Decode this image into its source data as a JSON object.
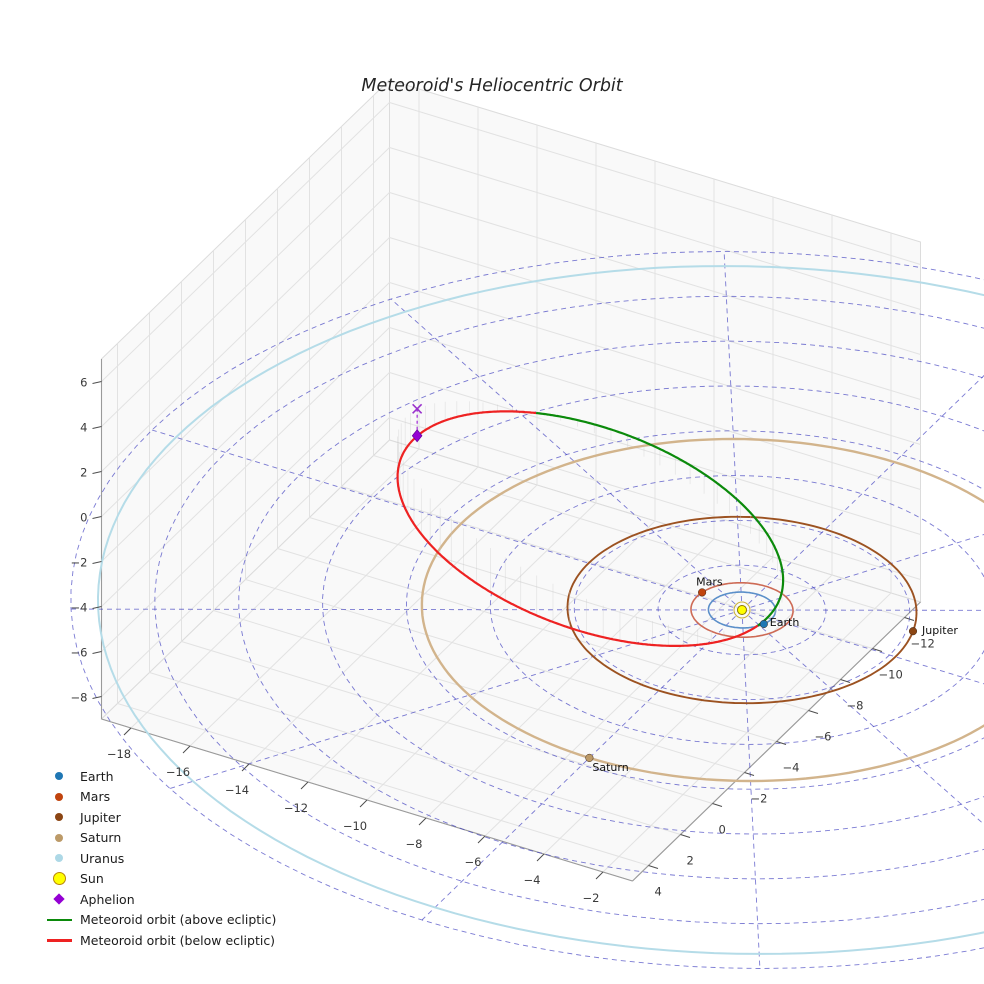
{
  "chart_data": {
    "type": "line",
    "projection": "3d",
    "title": "Meteoroid's Heliocentric Orbit",
    "axes": {
      "x_range": [
        -19,
        -1
      ],
      "y_range": [
        -13,
        5
      ],
      "z_range": [
        -9,
        7
      ],
      "x_ticks": [
        -18,
        -16,
        -14,
        -12,
        -10,
        -8,
        -6,
        -4,
        -2
      ],
      "y_ticks": [
        -12,
        -10,
        -8,
        -6,
        -4,
        -2,
        0,
        2,
        4
      ],
      "z_ticks": [
        -8,
        -6,
        -4,
        -2,
        0,
        2,
        4,
        6
      ],
      "grid": true
    },
    "ecliptic_grid": {
      "radii_au": [
        2.5,
        5,
        7.5,
        10,
        12.5,
        15,
        17.5,
        20
      ],
      "n_spokes": 12,
      "color": "#3333bb"
    },
    "sun": {
      "label": "Sun",
      "position": [
        0,
        0,
        0
      ],
      "color": "#ffff00",
      "edge_color": "#8f7a00",
      "ring_color": "#c9b037"
    },
    "planets": [
      {
        "name": "Earth",
        "label": "Earth",
        "orbit_radius_au": 1.0,
        "marker_angle_deg": 21,
        "orbit_color": "#5b8fc9",
        "marker_color": "#1f77b4",
        "label_offset": [
          6,
          2
        ]
      },
      {
        "name": "Mars",
        "label": "Mars",
        "orbit_radius_au": 1.52,
        "marker_angle_deg": 190,
        "orbit_color": "#cd6a55",
        "marker_color": "#c1440e",
        "label_offset": [
          -6,
          -7
        ]
      },
      {
        "name": "Jupiter",
        "label": "Jupiter",
        "orbit_radius_au": 5.2,
        "marker_angle_deg": -17,
        "orbit_color": "#9c5221",
        "marker_color": "#8b4513",
        "label_offset": [
          9,
          3
        ]
      },
      {
        "name": "Saturn",
        "label": "Saturn",
        "orbit_radius_au": 9.54,
        "marker_angle_deg": 90,
        "orbit_color": "#d2b48c",
        "marker_color": "#bc9a68",
        "label_offset": [
          3,
          13
        ]
      },
      {
        "name": "Uranus",
        "label": "Uranus",
        "orbit_radius_au": 19.19,
        "marker_angle_deg": -30,
        "orbit_color": "#b5dce8",
        "marker_color": "#add8e6",
        "label_offset": [
          8,
          3
        ]
      }
    ],
    "meteoroid_orbit": {
      "above_label": "Meteoroid orbit (above ecliptic)",
      "below_label": "Meteoroid orbit (below ecliptic)",
      "above_color": "#0b8a0b",
      "below_color": "#ee2222",
      "perihelion_distance_au": 0.95,
      "aphelion_distance_au": 14.7,
      "center": [
        -6.41,
        -2.34,
        -0.56
      ],
      "semi_major_au": 7.82,
      "semi_minor_au": 3.74,
      "major_axis_dir": [
        0.935,
        0.341,
        0.082
      ],
      "minor_axis_dir": [
        -0.291,
        0.884,
        -0.361
      ]
    },
    "aphelion": {
      "label": "Aphelion",
      "position": [
        -13.73,
        -5.01,
        -1.2
      ],
      "color": "#9400d3",
      "x_marker_color": "#9932cc"
    }
  },
  "legend": {
    "items": [
      {
        "label": "Earth",
        "marker": "circle",
        "color": "#1f77b4"
      },
      {
        "label": "Mars",
        "marker": "circle",
        "color": "#c1440e"
      },
      {
        "label": "Jupiter",
        "marker": "circle",
        "color": "#8b4513"
      },
      {
        "label": "Saturn",
        "marker": "circle",
        "color": "#bc9a68"
      },
      {
        "label": "Uranus",
        "marker": "circle",
        "color": "#add8e6"
      },
      {
        "label": "Sun",
        "marker": "circle",
        "color": "#ffff00",
        "edge": "#b8860b",
        "size": 11
      },
      {
        "label": "Aphelion",
        "marker": "diamond",
        "color": "#9400d3"
      },
      {
        "label": "Meteoroid orbit (above ecliptic)",
        "marker": "line",
        "color": "#0b8a0b"
      },
      {
        "label": "Meteoroid orbit (below ecliptic)",
        "marker": "line",
        "color": "#ee2222"
      }
    ]
  }
}
